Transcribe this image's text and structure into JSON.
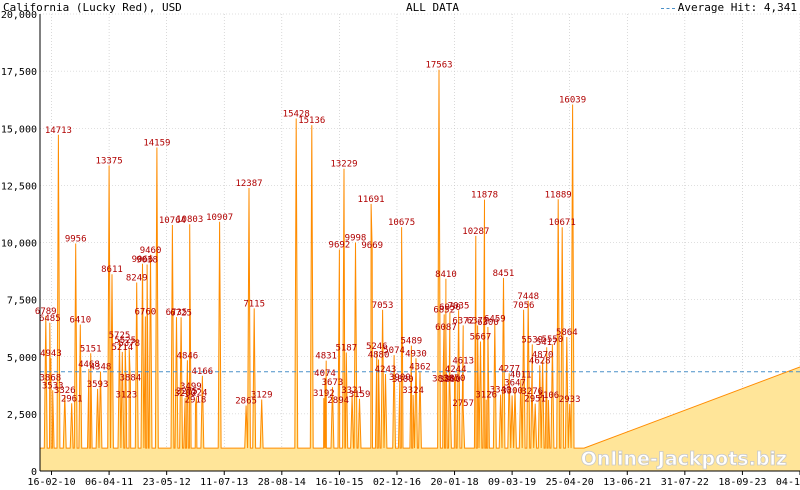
{
  "header": {
    "title": "California (Lucky Red), USD",
    "center": "ALL DATA",
    "legend_label": "Average Hit: 4,341"
  },
  "watermark": "Online-Jackpots.biz",
  "colors": {
    "line": "#ff8c00",
    "fill": "#ffe599",
    "average": "#4a90c8",
    "label": "#b00000",
    "grid": "#c0c0c0"
  },
  "chart_data": {
    "type": "line",
    "title": "California (Lucky Red), USD",
    "ylim": [
      0,
      20000
    ],
    "yticks": [
      {
        "v": 0,
        "t": "0"
      },
      {
        "v": 2500,
        "t": "2,500"
      },
      {
        "v": 5000,
        "t": "5,000"
      },
      {
        "v": 7500,
        "t": "7,500"
      },
      {
        "v": 10000,
        "t": "10,000"
      },
      {
        "v": 12500,
        "t": "12,500"
      },
      {
        "v": 15000,
        "t": "15,000"
      },
      {
        "v": 17500,
        "t": "17,500"
      },
      {
        "v": 20000,
        "t": "20,000"
      }
    ],
    "xticks": [
      "16-02-10",
      "06-04-11",
      "23-05-12",
      "11-07-13",
      "28-08-14",
      "16-10-15",
      "02-12-16",
      "20-01-18",
      "09-03-19",
      "25-04-20",
      "13-06-21",
      "31-07-22",
      "18-09-23",
      "04-11-24"
    ],
    "xrange": [
      0,
      13.2
    ],
    "average": 4341,
    "baseline": 1000,
    "peaks": [
      {
        "x": 0.1,
        "y": 6789
      },
      {
        "x": 0.17,
        "y": 6485
      },
      {
        "x": 0.19,
        "y": 4943
      },
      {
        "x": 0.18,
        "y": 3868
      },
      {
        "x": 0.22,
        "y": 3533
      },
      {
        "x": 0.32,
        "y": 14713
      },
      {
        "x": 0.43,
        "y": 3326
      },
      {
        "x": 0.55,
        "y": 2961
      },
      {
        "x": 0.62,
        "y": 9956
      },
      {
        "x": 0.7,
        "y": 6410
      },
      {
        "x": 0.88,
        "y": 5151
      },
      {
        "x": 0.85,
        "y": 4468
      },
      {
        "x": 1.05,
        "y": 4348
      },
      {
        "x": 1.0,
        "y": 3593
      },
      {
        "x": 1.2,
        "y": 13375
      },
      {
        "x": 1.25,
        "y": 8611
      },
      {
        "x": 1.38,
        "y": 5725
      },
      {
        "x": 1.48,
        "y": 5525
      },
      {
        "x": 1.43,
        "y": 5214
      },
      {
        "x": 1.55,
        "y": 5378
      },
      {
        "x": 1.57,
        "y": 3884
      },
      {
        "x": 1.5,
        "y": 3123
      },
      {
        "x": 1.68,
        "y": 8249
      },
      {
        "x": 1.78,
        "y": 9066
      },
      {
        "x": 1.86,
        "y": 9038
      },
      {
        "x": 1.92,
        "y": 9460
      },
      {
        "x": 1.83,
        "y": 6760
      },
      {
        "x": 2.03,
        "y": 14159
      },
      {
        "x": 2.3,
        "y": 10764
      },
      {
        "x": 2.37,
        "y": 6735
      },
      {
        "x": 2.45,
        "y": 6725
      },
      {
        "x": 2.52,
        "y": 3200
      },
      {
        "x": 2.6,
        "y": 10803
      },
      {
        "x": 2.56,
        "y": 4846
      },
      {
        "x": 2.62,
        "y": 3499
      },
      {
        "x": 2.55,
        "y": 3275
      },
      {
        "x": 2.72,
        "y": 3224
      },
      {
        "x": 2.7,
        "y": 2918
      },
      {
        "x": 2.82,
        "y": 4166
      },
      {
        "x": 3.12,
        "y": 10907
      },
      {
        "x": 3.63,
        "y": 12387
      },
      {
        "x": 3.72,
        "y": 7115
      },
      {
        "x": 3.58,
        "y": 2865
      },
      {
        "x": 3.85,
        "y": 3129
      },
      {
        "x": 4.45,
        "y": 15428
      },
      {
        "x": 4.72,
        "y": 15136
      },
      {
        "x": 4.97,
        "y": 4831
      },
      {
        "x": 4.95,
        "y": 4074
      },
      {
        "x": 5.08,
        "y": 3673
      },
      {
        "x": 4.93,
        "y": 3192
      },
      {
        "x": 5.18,
        "y": 2894
      },
      {
        "x": 5.28,
        "y": 13229
      },
      {
        "x": 5.2,
        "y": 9692
      },
      {
        "x": 5.32,
        "y": 5187
      },
      {
        "x": 5.48,
        "y": 9998
      },
      {
        "x": 5.42,
        "y": 3321
      },
      {
        "x": 5.55,
        "y": 3159
      },
      {
        "x": 5.75,
        "y": 11691
      },
      {
        "x": 5.77,
        "y": 9669
      },
      {
        "x": 5.85,
        "y": 5246
      },
      {
        "x": 5.88,
        "y": 4880
      },
      {
        "x": 5.95,
        "y": 7053
      },
      {
        "x": 6.0,
        "y": 4243
      },
      {
        "x": 6.15,
        "y": 5074
      },
      {
        "x": 6.28,
        "y": 10675
      },
      {
        "x": 6.25,
        "y": 3900
      },
      {
        "x": 6.3,
        "y": 3800
      },
      {
        "x": 6.45,
        "y": 5489
      },
      {
        "x": 6.53,
        "y": 4930
      },
      {
        "x": 6.6,
        "y": 4362
      },
      {
        "x": 6.48,
        "y": 3324
      },
      {
        "x": 6.93,
        "y": 17563
      },
      {
        "x": 7.02,
        "y": 6852
      },
      {
        "x": 7.05,
        "y": 8410
      },
      {
        "x": 7.12,
        "y": 6950
      },
      {
        "x": 7.05,
        "y": 6087
      },
      {
        "x": 7.0,
        "y": 3838
      },
      {
        "x": 7.12,
        "y": 3800
      },
      {
        "x": 7.2,
        "y": 3850
      },
      {
        "x": 7.27,
        "y": 7035
      },
      {
        "x": 7.35,
        "y": 6372
      },
      {
        "x": 7.35,
        "y": 4613
      },
      {
        "x": 7.22,
        "y": 4244
      },
      {
        "x": 7.35,
        "y": 2757
      },
      {
        "x": 7.57,
        "y": 10287
      },
      {
        "x": 7.72,
        "y": 11878
      },
      {
        "x": 7.65,
        "y": 5667
      },
      {
        "x": 7.6,
        "y": 6372
      },
      {
        "x": 7.78,
        "y": 6300
      },
      {
        "x": 7.9,
        "y": 6459
      },
      {
        "x": 7.75,
        "y": 3126
      },
      {
        "x": 8.05,
        "y": 8451
      },
      {
        "x": 8.0,
        "y": 3340
      },
      {
        "x": 8.2,
        "y": 3300
      },
      {
        "x": 8.15,
        "y": 4277
      },
      {
        "x": 8.25,
        "y": 3647
      },
      {
        "x": 8.35,
        "y": 4011
      },
      {
        "x": 8.4,
        "y": 7056
      },
      {
        "x": 8.48,
        "y": 7448
      },
      {
        "x": 8.55,
        "y": 5539
      },
      {
        "x": 8.55,
        "y": 3276
      },
      {
        "x": 8.6,
        "y": 2951
      },
      {
        "x": 8.68,
        "y": 4628
      },
      {
        "x": 8.73,
        "y": 4870
      },
      {
        "x": 8.8,
        "y": 5417
      },
      {
        "x": 8.83,
        "y": 3106
      },
      {
        "x": 8.9,
        "y": 5550
      },
      {
        "x": 9.0,
        "y": 11889
      },
      {
        "x": 9.07,
        "y": 10671
      },
      {
        "x": 9.15,
        "y": 5864
      },
      {
        "x": 9.25,
        "y": 16039
      },
      {
        "x": 9.2,
        "y": 2933
      }
    ],
    "tail": [
      [
        9.45,
        1000
      ],
      [
        13.2,
        4550
      ]
    ]
  }
}
